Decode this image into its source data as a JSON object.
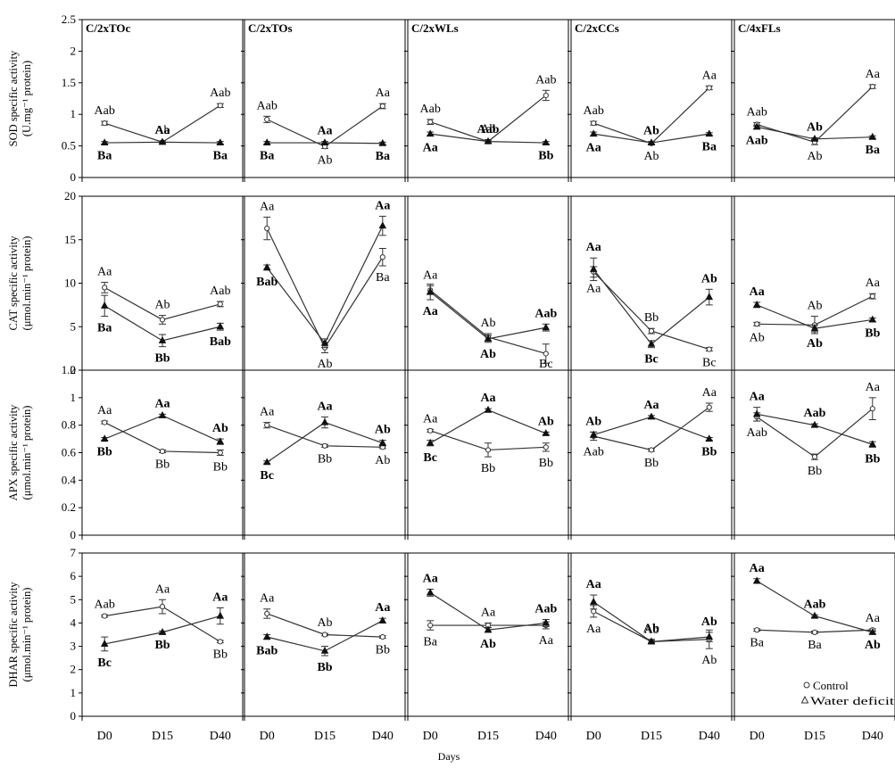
{
  "figure": {
    "xlabel": "Days",
    "days": [
      "D0",
      "D15",
      "D40"
    ],
    "legend": {
      "control": "Control",
      "water": "Water deficit"
    }
  },
  "chart_data": [
    {
      "type": "line",
      "ylabel": [
        "SOD specific activity",
        "(U.mg⁻¹ protein)"
      ],
      "ylim": [
        0,
        2.5
      ],
      "yticks": [
        "0",
        "0.5",
        "1",
        "1.5",
        "2",
        "2.5"
      ],
      "panels": [
        {
          "title": "C/2xTOc",
          "control": [
            0.86,
            0.56,
            1.14
          ],
          "control_err": [
            0.03,
            0.02,
            0.03
          ],
          "control_labels": [
            "Aab",
            "Ab",
            "Aab"
          ],
          "water": [
            0.55,
            0.56,
            0.55
          ],
          "water_err": [
            0.02,
            0.02,
            0.02
          ],
          "water_labels": [
            "Ba",
            "Aa",
            "Ba"
          ]
        },
        {
          "title": "C/2xTOs",
          "control": [
            0.92,
            0.49,
            1.13
          ],
          "control_err": [
            0.05,
            0.03,
            0.04
          ],
          "control_labels": [
            "Aab",
            "Ab",
            "Aa"
          ],
          "water": [
            0.55,
            0.55,
            0.54
          ],
          "water_err": [
            0.02,
            0.02,
            0.02
          ],
          "water_labels": [
            "Ba",
            "Aa",
            "Ba"
          ]
        },
        {
          "title": "C/2xWLs",
          "control": [
            0.88,
            0.57,
            1.3
          ],
          "control_err": [
            0.04,
            0.03,
            0.08
          ],
          "control_labels": [
            "Aab",
            "Ab",
            "Aab"
          ],
          "water": [
            0.69,
            0.57,
            0.55
          ],
          "water_err": [
            0.03,
            0.02,
            0.02
          ],
          "water_labels": [
            "Aa",
            "Aab",
            "Bb"
          ]
        },
        {
          "title": "C/2xCCs",
          "control": [
            0.86,
            0.54,
            1.42
          ],
          "control_err": [
            0.03,
            0.02,
            0.03
          ],
          "control_labels": [
            "Aab",
            "Ab",
            "Aa"
          ],
          "water": [
            0.69,
            0.55,
            0.69
          ],
          "water_err": [
            0.03,
            0.02,
            0.02
          ],
          "water_labels": [
            "Aa",
            "Ab",
            "Ba"
          ]
        },
        {
          "title": "C/4xFLs",
          "control": [
            0.84,
            0.56,
            1.44
          ],
          "control_err": [
            0.03,
            0.04,
            0.03
          ],
          "control_labels": [
            "Aab",
            "Ab",
            "Aa"
          ],
          "water": [
            0.8,
            0.61,
            0.64
          ],
          "water_err": [
            0.03,
            0.02,
            0.02
          ],
          "water_labels": [
            "Aab",
            "Ab",
            "Ba"
          ]
        }
      ]
    },
    {
      "type": "line",
      "ylabel": [
        "CAT specific activity",
        "(μmol.min⁻¹ protein)"
      ],
      "ylim": [
        0,
        20
      ],
      "yticks": [
        "0",
        "5",
        "10",
        "15",
        "20"
      ],
      "panels": [
        {
          "title": "",
          "control": [
            9.5,
            5.8,
            7.6
          ],
          "control_err": [
            0.6,
            0.5,
            0.3
          ],
          "control_labels": [
            "Aa",
            "Ab",
            "Aab"
          ],
          "water": [
            7.4,
            3.4,
            5.0
          ],
          "water_err": [
            1.2,
            0.7,
            0.4
          ],
          "water_labels": [
            "Ba",
            "Bb",
            "Bab"
          ]
        },
        {
          "title": "",
          "control": [
            16.3,
            2.6,
            13.0
          ],
          "control_err": [
            1.3,
            0.6,
            1.0
          ],
          "control_labels": [
            "Aa",
            "Ab",
            "Ba"
          ],
          "water": [
            11.8,
            3.1,
            16.6
          ],
          "water_err": [
            0.3,
            0.5,
            1.1
          ],
          "water_labels": [
            "Bab",
            "",
            "Aa"
          ]
        },
        {
          "title": "",
          "control": [
            9.2,
            3.8,
            1.9
          ],
          "control_err": [
            0.5,
            0.4,
            1.1
          ],
          "control_labels": [
            "Aa",
            "Ab",
            "Bc"
          ],
          "water": [
            9.0,
            3.6,
            4.9
          ],
          "water_err": [
            0.9,
            0.4,
            0.4
          ],
          "water_labels": [
            "Aa",
            "Ab",
            "Aab"
          ]
        },
        {
          "title": "",
          "control": [
            11.3,
            4.5,
            2.4
          ],
          "control_err": [
            0.6,
            0.3,
            0.2
          ],
          "control_labels": [
            "Aa",
            "Bb",
            "Bc"
          ],
          "water": [
            11.6,
            3.0,
            8.4
          ],
          "water_err": [
            1.3,
            0.4,
            0.9
          ],
          "water_labels": [
            "Aa",
            "Bc",
            "Ab"
          ]
        },
        {
          "title": "",
          "control": [
            5.3,
            5.2,
            8.5
          ],
          "control_err": [
            0.2,
            1.0,
            0.3
          ],
          "control_labels": [
            "Ab",
            "Ab",
            "Aa"
          ],
          "water": [
            7.5,
            4.8,
            5.8
          ],
          "water_err": [
            0.3,
            0.4,
            0.2
          ],
          "water_labels": [
            "Aa",
            "Ab",
            "Bb"
          ]
        }
      ]
    },
    {
      "type": "line",
      "ylabel": [
        "APX specific activity",
        "(μmol.min⁻¹ protein)"
      ],
      "ylim": [
        0,
        1.2
      ],
      "yticks": [
        "0",
        "0.2",
        "0.4",
        "0.6",
        "0.8",
        "1",
        "1.2"
      ],
      "panels": [
        {
          "title": "",
          "control": [
            0.82,
            0.61,
            0.6
          ],
          "control_err": [
            0.01,
            0.01,
            0.02
          ],
          "control_labels": [
            "Aa",
            "Bb",
            "Bb"
          ],
          "water": [
            0.7,
            0.87,
            0.68
          ],
          "water_err": [
            0.01,
            0.01,
            0.02
          ],
          "water_labels": [
            "Bb",
            "Aa",
            "Ab"
          ]
        },
        {
          "title": "",
          "control": [
            0.8,
            0.65,
            0.64
          ],
          "control_err": [
            0.02,
            0.01,
            0.01
          ],
          "control_labels": [
            "Aa",
            "Bb",
            "Ab"
          ],
          "water": [
            0.53,
            0.82,
            0.67
          ],
          "water_err": [
            0.01,
            0.04,
            0.02
          ],
          "water_labels": [
            "Bc",
            "Aa",
            "Ab"
          ]
        },
        {
          "title": "",
          "control": [
            0.76,
            0.62,
            0.64
          ],
          "control_err": [
            0.01,
            0.05,
            0.03
          ],
          "control_labels": [
            "Aa",
            "Bb",
            "Bb"
          ],
          "water": [
            0.67,
            0.91,
            0.74
          ],
          "water_err": [
            0.02,
            0.01,
            0.01
          ],
          "water_labels": [
            "Bc",
            "Aa",
            "Ab"
          ]
        },
        {
          "title": "",
          "control": [
            0.72,
            0.62,
            0.93
          ],
          "control_err": [
            0.03,
            0.01,
            0.03
          ],
          "control_labels": [
            "Aab",
            "Bb",
            "Aa"
          ],
          "water": [
            0.73,
            0.86,
            0.7
          ],
          "water_err": [
            0.02,
            0.01,
            0.01
          ],
          "water_labels": [
            "Ab",
            "Aa",
            "Bb"
          ]
        },
        {
          "title": "",
          "control": [
            0.86,
            0.57,
            0.92
          ],
          "control_err": [
            0.03,
            0.02,
            0.08
          ],
          "control_labels": [
            "Aab",
            "Bb",
            "Aa"
          ],
          "water": [
            0.88,
            0.8,
            0.66
          ],
          "water_err": [
            0.05,
            0.01,
            0.02
          ],
          "water_labels": [
            "Aa",
            "Aab",
            "Bb"
          ]
        }
      ]
    },
    {
      "type": "line",
      "ylabel": [
        "DHAR specific activity",
        "(μmol.min⁻¹ protein)"
      ],
      "ylim": [
        0,
        7
      ],
      "yticks": [
        "0",
        "1",
        "2",
        "3",
        "4",
        "5",
        "6",
        "7"
      ],
      "panels": [
        {
          "title": "",
          "control": [
            4.3,
            4.7,
            3.2
          ],
          "control_err": [
            0.05,
            0.3,
            0.05
          ],
          "control_labels": [
            "Aab",
            "Aa",
            "Bb"
          ],
          "water": [
            3.1,
            3.6,
            4.3
          ],
          "water_err": [
            0.3,
            0.05,
            0.35
          ],
          "water_labels": [
            "Bc",
            "Bb",
            "Aa"
          ]
        },
        {
          "title": "",
          "control": [
            4.4,
            3.5,
            3.4
          ],
          "control_err": [
            0.2,
            0.05,
            0.05
          ],
          "control_labels": [
            "Aa",
            "Ab",
            "Bb"
          ],
          "water": [
            3.4,
            2.8,
            4.1
          ],
          "water_err": [
            0.1,
            0.2,
            0.1
          ],
          "water_labels": [
            "Bab",
            "Bb",
            "Aa"
          ]
        },
        {
          "title": "",
          "control": [
            3.9,
            3.9,
            3.9
          ],
          "control_err": [
            0.2,
            0.1,
            0.15
          ],
          "control_labels": [
            "Ba",
            "Aa",
            "Aa"
          ],
          "water": [
            5.3,
            3.7,
            4.0
          ],
          "water_err": [
            0.15,
            0.1,
            0.15
          ],
          "water_labels": [
            "Aa",
            "Ab",
            "Aab"
          ]
        },
        {
          "title": "",
          "control": [
            4.5,
            3.2,
            3.3
          ],
          "control_err": [
            0.25,
            0.05,
            0.4
          ],
          "control_labels": [
            "Aa",
            "Ab",
            "Ab"
          ],
          "water": [
            4.9,
            3.2,
            3.4
          ],
          "water_err": [
            0.3,
            0.1,
            0.2
          ],
          "water_labels": [
            "Aa",
            "Ab",
            "Ab"
          ]
        },
        {
          "title": "",
          "control": [
            3.7,
            3.6,
            3.7
          ],
          "control_err": [
            0.05,
            0.05,
            0.05
          ],
          "control_labels": [
            "Ba",
            "Ba",
            "Aa"
          ],
          "water": [
            5.8,
            4.3,
            3.6
          ],
          "water_err": [
            0.1,
            0.05,
            0.05
          ],
          "water_labels": [
            "Aa",
            "Aab",
            "Ab"
          ]
        }
      ]
    }
  ]
}
